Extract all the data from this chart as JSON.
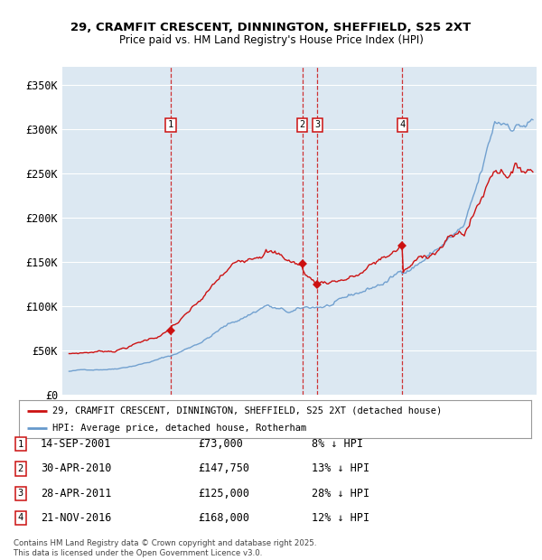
{
  "title1": "29, CRAMFIT CRESCENT, DINNINGTON, SHEFFIELD, S25 2XT",
  "title2": "Price paid vs. HM Land Registry's House Price Index (HPI)",
  "ylim": [
    0,
    370000
  ],
  "yticks": [
    0,
    50000,
    100000,
    150000,
    200000,
    250000,
    300000,
    350000
  ],
  "ytick_labels": [
    "£0",
    "£50K",
    "£100K",
    "£150K",
    "£200K",
    "£250K",
    "£300K",
    "£350K"
  ],
  "bg_color": "#dce8f2",
  "grid_color": "#ffffff",
  "hpi_color": "#6699cc",
  "price_color": "#cc1111",
  "sale_dates_num": [
    2001.71,
    2010.33,
    2011.32,
    2016.89
  ],
  "sale_prices": [
    73000,
    147750,
    125000,
    168000
  ],
  "sale_labels": [
    "1",
    "2",
    "3",
    "4"
  ],
  "vline_color": "#cc1111",
  "legend_label_price": "29, CRAMFIT CRESCENT, DINNINGTON, SHEFFIELD, S25 2XT (detached house)",
  "legend_label_hpi": "HPI: Average price, detached house, Rotherham",
  "transactions": [
    {
      "label": "1",
      "date": "14-SEP-2001",
      "price": "£73,000",
      "pct": "8% ↓ HPI"
    },
    {
      "label": "2",
      "date": "30-APR-2010",
      "price": "£147,750",
      "pct": "13% ↓ HPI"
    },
    {
      "label": "3",
      "date": "28-APR-2011",
      "price": "£125,000",
      "pct": "28% ↓ HPI"
    },
    {
      "label": "4",
      "date": "21-NOV-2016",
      "price": "£168,000",
      "pct": "12% ↓ HPI"
    }
  ],
  "footer": "Contains HM Land Registry data © Crown copyright and database right 2025.\nThis data is licensed under the Open Government Licence v3.0."
}
